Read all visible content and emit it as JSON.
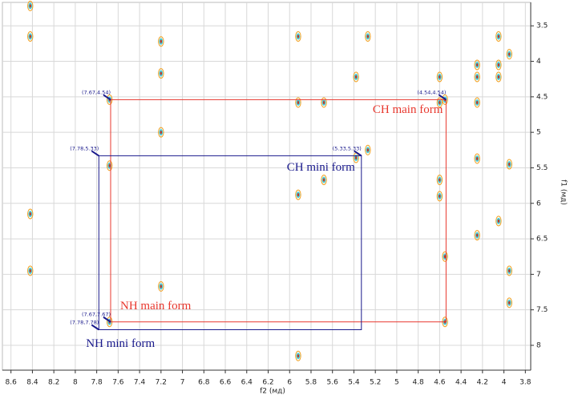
{
  "chart_data": {
    "type": "contour",
    "xlabel": "f2 (мд)",
    "ylabel": "f1 (мд)",
    "xlim": [
      8.68,
      3.75
    ],
    "ylim": [
      3.17,
      8.35
    ],
    "xticks": [
      8.6,
      8.4,
      8.2,
      8.0,
      7.8,
      7.6,
      7.4,
      7.2,
      7.0,
      6.8,
      6.6,
      6.4,
      6.2,
      6.0,
      5.8,
      5.6,
      5.4,
      5.2,
      5.0,
      4.8,
      4.6,
      4.4,
      4.2,
      4.0,
      3.8
    ],
    "yticks": [
      3.5,
      4.0,
      4.5,
      5.0,
      5.5,
      6.0,
      6.5,
      7.0,
      7.5,
      8.0
    ],
    "grid": true,
    "peaks": {
      "x": [
        8.42,
        8.42,
        8.42,
        8.42,
        7.68,
        7.68,
        7.68,
        7.2,
        7.2,
        7.2,
        7.2,
        5.92,
        5.92,
        5.92,
        5.92,
        5.68,
        5.68,
        5.38,
        5.38,
        5.27,
        5.27,
        4.6,
        4.6,
        4.6,
        4.6,
        4.55,
        4.55,
        4.55,
        4.25,
        4.25,
        4.25,
        4.25,
        4.25,
        4.05,
        4.05,
        4.05,
        4.05,
        3.95,
        3.95,
        3.95,
        3.95
      ],
      "y": [
        3.22,
        3.65,
        6.15,
        6.95,
        4.54,
        5.47,
        7.67,
        3.72,
        4.17,
        5.0,
        7.17,
        3.65,
        4.58,
        5.88,
        8.15,
        4.58,
        5.67,
        4.22,
        5.36,
        3.65,
        5.25,
        4.22,
        4.58,
        5.67,
        5.9,
        4.54,
        6.75,
        7.67,
        4.05,
        4.22,
        4.58,
        5.37,
        6.45,
        3.65,
        4.05,
        4.22,
        6.25,
        3.9,
        5.45,
        6.95,
        7.4
      ]
    },
    "boxes": [
      {
        "color": "#e8382e",
        "texts": [
          "CH main form",
          "NH main form"
        ],
        "corners": [
          {
            "label": "(7.67,4.54)",
            "x": 7.67,
            "y": 4.54
          },
          {
            "label": "(4.54,4.54)",
            "x": 4.54,
            "y": 4.54
          },
          {
            "label": "(7.67,7.67)",
            "x": 7.67,
            "y": 7.67
          }
        ]
      },
      {
        "color": "#1a1a8c",
        "texts": [
          "CH mini form",
          "NH mini form"
        ],
        "corners": [
          {
            "label": "(7.78,5.33)",
            "x": 7.78,
            "y": 5.33
          },
          {
            "label": "(5.33,5.33)",
            "x": 5.33,
            "y": 5.33
          },
          {
            "label": "(7.78,7.78)",
            "x": 7.78,
            "y": 7.78
          }
        ]
      }
    ]
  }
}
